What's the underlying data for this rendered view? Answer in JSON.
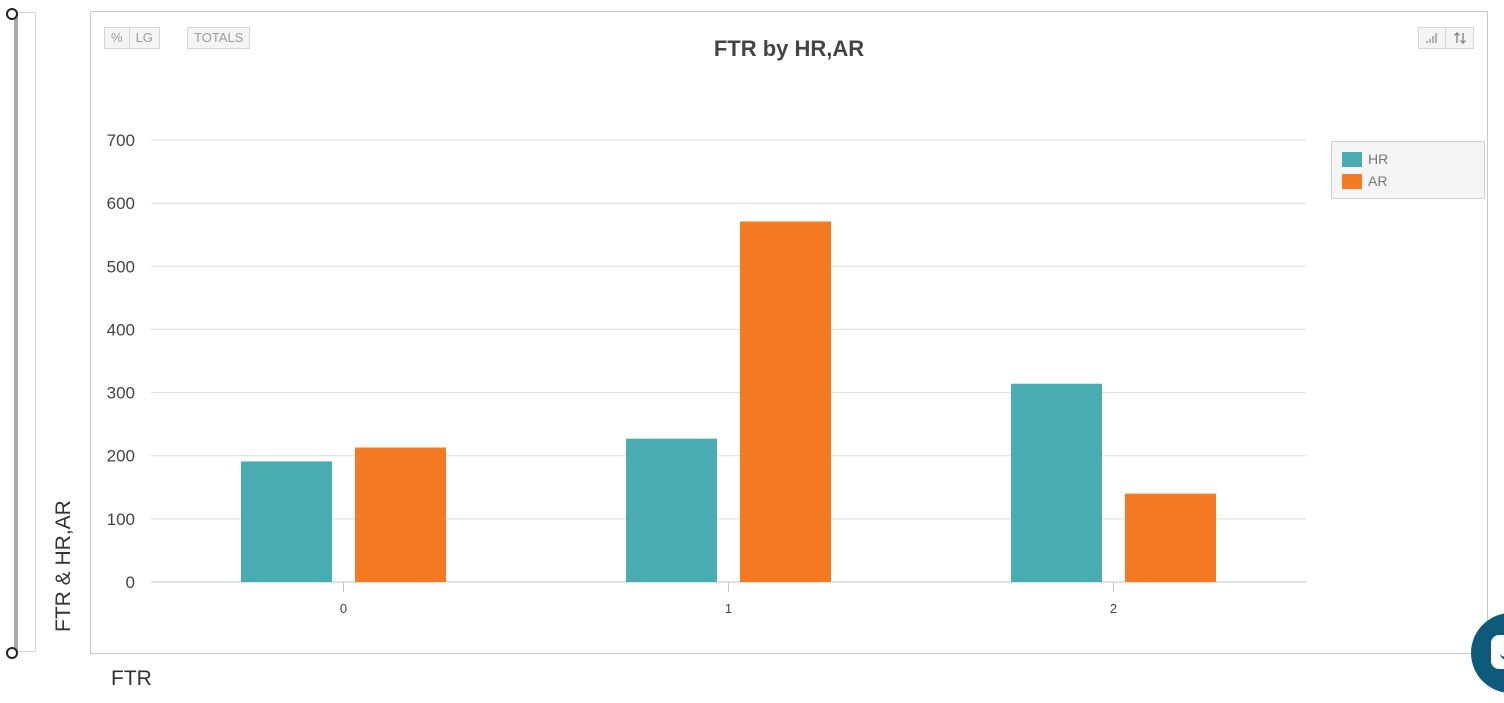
{
  "toolbar": {
    "percent_label": "%",
    "lg_label": "LG",
    "totals_label": "TOTALS",
    "bar_icon": "signal-bars-icon",
    "sort_icon": "sort-arrows-icon"
  },
  "axis_titles": {
    "y": "FTR & HR,AR",
    "x": "FTR"
  },
  "colors": {
    "HR": "#48acb2",
    "AR": "#f47a24",
    "grid": "#dcdcdc",
    "baseline": "#b8cad6"
  },
  "chat_widget": {
    "icon": "chat-icon"
  },
  "chart_data": {
    "type": "bar",
    "title": "FTR by HR,AR",
    "categories": [
      "0",
      "1",
      "2"
    ],
    "series": [
      {
        "name": "HR",
        "values": [
          191,
          227,
          314
        ]
      },
      {
        "name": "AR",
        "values": [
          213,
          571,
          140
        ]
      }
    ],
    "ylim": [
      0,
      700
    ],
    "yticks": [
      "0",
      "100",
      "200",
      "300",
      "400",
      "500",
      "600",
      "700"
    ],
    "grid": true,
    "legend": "top-right"
  }
}
